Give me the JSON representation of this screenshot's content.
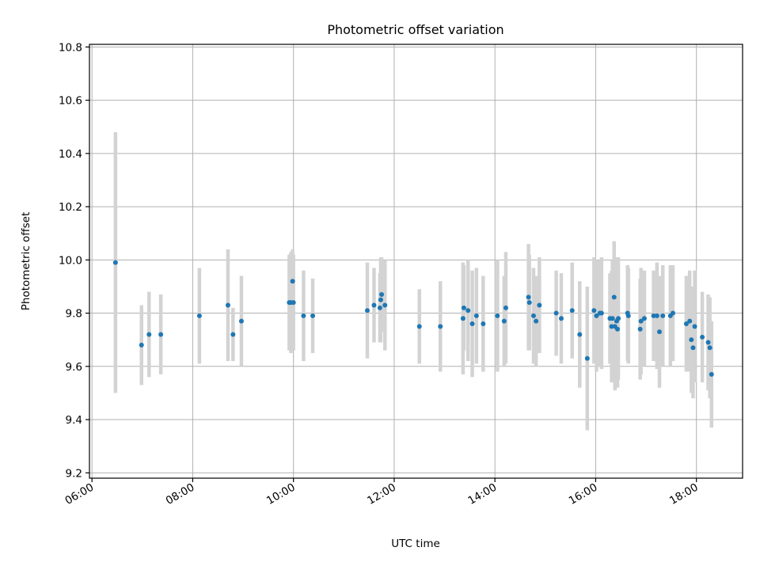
{
  "chart_data": {
    "type": "scatter",
    "title": "Photometric offset variation",
    "xlabel": "UTC time",
    "ylabel": "Photometric offset",
    "x_tick_labels": [
      "06:00",
      "08:00",
      "10:00",
      "12:00",
      "14:00",
      "16:00",
      "18:00"
    ],
    "y_tick_labels": [
      "9.2",
      "9.4",
      "9.6",
      "9.8",
      "10.0",
      "10.2",
      "10.4",
      "10.6",
      "10.8"
    ],
    "xlim": [
      "05:57",
      "18:55"
    ],
    "ylim": [
      9.18,
      10.81
    ],
    "grid": true,
    "point_color": "#1f77b4",
    "errorbar_color": "#d3d3d3",
    "series": [
      {
        "x": [
          "06:28",
          "06:59",
          "07:08",
          "07:22",
          "08:08",
          "08:42",
          "08:48",
          "08:58",
          "09:55",
          "09:57",
          "09:59",
          "10:00",
          "10:12",
          "10:23",
          "11:28",
          "11:36",
          "11:43",
          "11:44",
          "11:45",
          "11:49",
          "12:30",
          "12:55",
          "13:22",
          "13:23",
          "13:28",
          "13:33",
          "13:38",
          "13:46",
          "14:03",
          "14:11",
          "14:13",
          "14:40",
          "14:41",
          "14:46",
          "14:49",
          "14:53",
          "15:13",
          "15:19",
          "15:32",
          "15:41",
          "15:50",
          "15:58",
          "16:01",
          "16:05",
          "16:07",
          "16:17",
          "16:19",
          "16:20",
          "16:22",
          "16:23",
          "16:25",
          "16:26",
          "16:27",
          "16:38",
          "16:39",
          "16:53",
          "16:54",
          "16:58",
          "17:09",
          "17:13",
          "17:16",
          "17:20",
          "17:29",
          "17:32",
          "17:48",
          "17:52",
          "17:54",
          "17:56",
          "17:58",
          "18:07",
          "18:14",
          "18:16",
          "18:18"
        ],
        "y": [
          9.99,
          9.68,
          9.72,
          9.72,
          9.79,
          9.83,
          9.72,
          9.77,
          9.84,
          9.84,
          9.92,
          9.84,
          9.79,
          9.79,
          9.81,
          9.83,
          9.82,
          9.85,
          9.87,
          9.83,
          9.75,
          9.75,
          9.78,
          9.82,
          9.81,
          9.76,
          9.79,
          9.76,
          9.79,
          9.77,
          9.82,
          9.86,
          9.84,
          9.79,
          9.77,
          9.83,
          9.8,
          9.78,
          9.81,
          9.72,
          9.63,
          9.81,
          9.79,
          9.8,
          9.8,
          9.78,
          9.75,
          9.78,
          9.86,
          9.75,
          9.77,
          9.74,
          9.78,
          9.8,
          9.79,
          9.74,
          9.77,
          9.78,
          9.79,
          9.79,
          9.73,
          9.79,
          9.79,
          9.8,
          9.76,
          9.77,
          9.7,
          9.67,
          9.75,
          9.71,
          9.69,
          9.67,
          9.57
        ],
        "err": [
          0.49,
          0.15,
          0.16,
          0.15,
          0.18,
          0.21,
          0.1,
          0.17,
          0.18,
          0.19,
          0.12,
          0.18,
          0.17,
          0.14,
          0.18,
          0.14,
          0.13,
          0.16,
          0.14,
          0.17,
          0.14,
          0.17,
          0.21,
          0.16,
          0.19,
          0.2,
          0.18,
          0.18,
          0.21,
          0.17,
          0.21,
          0.2,
          0.18,
          0.18,
          0.17,
          0.18,
          0.16,
          0.17,
          0.18,
          0.2,
          0.27,
          0.2,
          0.21,
          0.2,
          0.21,
          0.17,
          0.21,
          0.22,
          0.21,
          0.24,
          0.24,
          0.22,
          0.23,
          0.18,
          0.18,
          0.19,
          0.2,
          0.18,
          0.17,
          0.2,
          0.21,
          0.19,
          0.19,
          0.18,
          0.18,
          0.19,
          0.2,
          0.19,
          0.21,
          0.17,
          0.18,
          0.19,
          0.2
        ]
      }
    ]
  }
}
